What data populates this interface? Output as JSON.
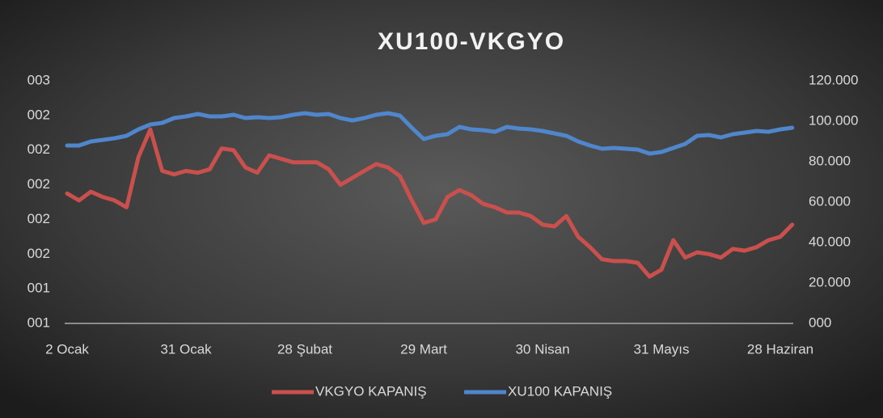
{
  "chart_data": {
    "type": "line",
    "title": "XU100-VKGYO",
    "categories": [
      "2 Ocak",
      null,
      null,
      null,
      null,
      null,
      null,
      null,
      null,
      null,
      "31 Ocak",
      null,
      null,
      null,
      null,
      null,
      null,
      null,
      null,
      null,
      "28 Şubat",
      null,
      null,
      null,
      null,
      null,
      null,
      null,
      null,
      null,
      "29 Mart",
      null,
      null,
      null,
      null,
      null,
      null,
      null,
      null,
      null,
      "30 Nisan",
      null,
      null,
      null,
      null,
      null,
      null,
      null,
      null,
      null,
      "31 Mayıs",
      null,
      null,
      null,
      null,
      null,
      null,
      null,
      null,
      null,
      "28 Haziran",
      null
    ],
    "series": [
      {
        "name": "VKGYO KAPANIŞ",
        "color": "#c9504c",
        "axis": "y",
        "values": [
          1.95,
          1.91,
          1.96,
          1.93,
          1.91,
          1.87,
          2.16,
          2.32,
          2.08,
          2.06,
          2.08,
          2.07,
          2.09,
          2.21,
          2.2,
          2.1,
          2.07,
          2.17,
          2.15,
          2.13,
          2.13,
          2.13,
          2.09,
          2.0,
          2.04,
          2.08,
          2.12,
          2.1,
          2.05,
          1.91,
          1.78,
          1.8,
          1.93,
          1.97,
          1.94,
          1.89,
          1.87,
          1.84,
          1.84,
          1.82,
          1.77,
          1.76,
          1.82,
          1.7,
          1.64,
          1.57,
          1.56,
          1.56,
          1.55,
          1.47,
          1.51,
          1.68,
          1.58,
          1.61,
          1.6,
          1.58,
          1.63,
          1.62,
          1.64,
          1.68,
          1.7,
          1.77
        ]
      },
      {
        "name": "XU100 KAPANIŞ",
        "color": "#4f86cc",
        "axis": "y2",
        "values": [
          88000,
          88000,
          90000,
          90800,
          91600,
          92800,
          96000,
          98400,
          99200,
          101600,
          102400,
          103600,
          102400,
          102400,
          103200,
          101600,
          102000,
          101600,
          102000,
          103200,
          104000,
          103200,
          103600,
          101600,
          100400,
          101600,
          103200,
          104000,
          102800,
          96800,
          91200,
          92800,
          93600,
          97200,
          96000,
          95600,
          94800,
          97200,
          96400,
          96000,
          95200,
          94000,
          92800,
          90000,
          88000,
          86400,
          86800,
          86400,
          86000,
          84000,
          84800,
          86800,
          88800,
          92800,
          93200,
          92000,
          93600,
          94400,
          95200,
          94800,
          96000,
          96800
        ]
      }
    ],
    "ylim": [
      1.2,
      2.6
    ],
    "yticks": [
      {
        "value": 1.2,
        "label": "001"
      },
      {
        "value": 1.4,
        "label": "001"
      },
      {
        "value": 1.6,
        "label": "002"
      },
      {
        "value": 1.8,
        "label": "002"
      },
      {
        "value": 2.0,
        "label": "002"
      },
      {
        "value": 2.2,
        "label": "002"
      },
      {
        "value": 2.4,
        "label": "002"
      },
      {
        "value": 2.6,
        "label": "003"
      }
    ],
    "y2lim": [
      0,
      120000
    ],
    "y2ticks": [
      {
        "value": 0,
        "label": "000"
      },
      {
        "value": 20000,
        "label": "20.000"
      },
      {
        "value": 40000,
        "label": "40.000"
      },
      {
        "value": 60000,
        "label": "60.000"
      },
      {
        "value": 80000,
        "label": "80.000"
      },
      {
        "value": 100000,
        "label": "100.000"
      },
      {
        "value": 120000,
        "label": "120.000"
      }
    ],
    "grid": false,
    "legend": "bottom"
  }
}
